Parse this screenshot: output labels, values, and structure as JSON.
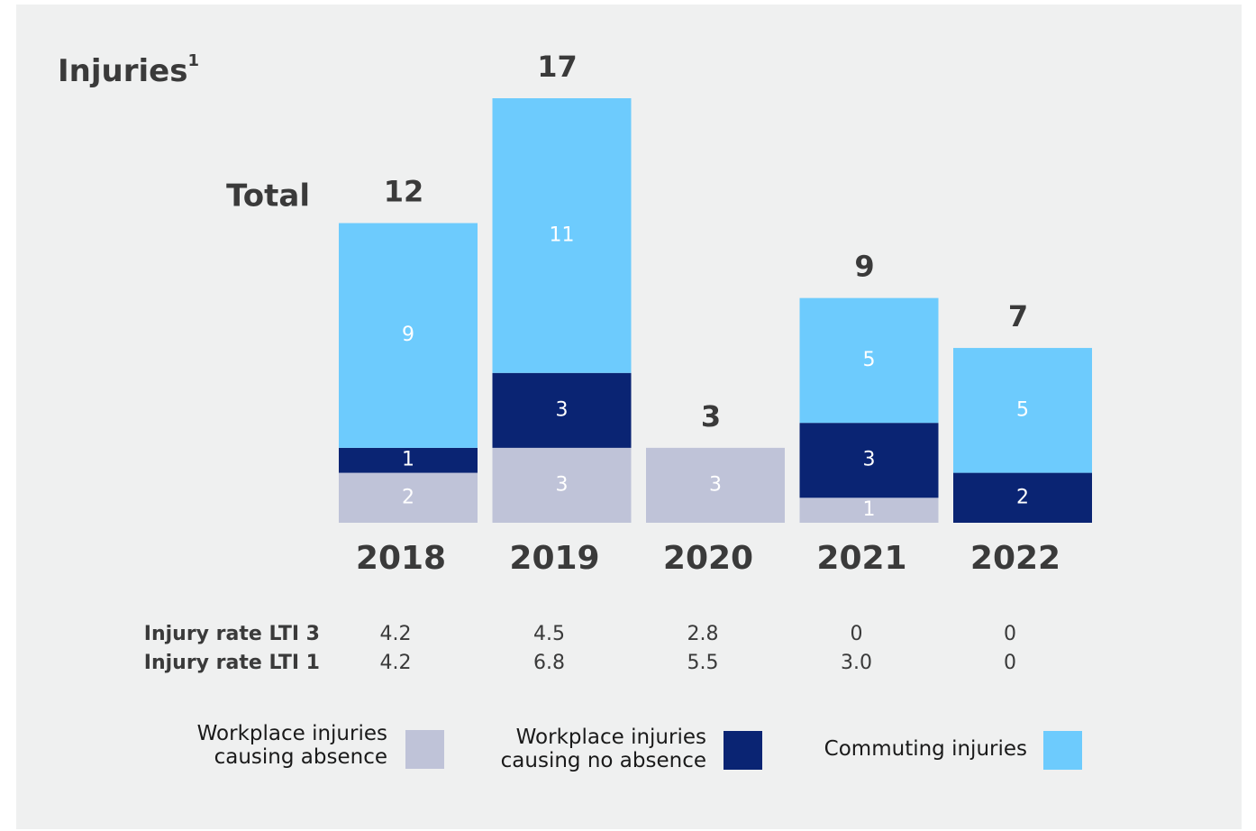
{
  "chart_data": {
    "type": "stacked_bar",
    "title": "Injuries",
    "title_note": "1",
    "total_label": "Total",
    "categories": [
      "2018",
      "2019",
      "2020",
      "2021",
      "2022"
    ],
    "series": [
      {
        "name": "Workplace injuries causing absence",
        "color": "#bfc3d8",
        "values": [
          2,
          3,
          3,
          1,
          0
        ]
      },
      {
        "name": "Workplace injuries causing no absence",
        "color": "#0a2473",
        "values": [
          1,
          3,
          0,
          3,
          2
        ]
      },
      {
        "name": "Commuting injuries",
        "color": "#6dcbfd",
        "values": [
          9,
          11,
          0,
          5,
          5
        ]
      }
    ],
    "totals": [
      12,
      17,
      3,
      9,
      7
    ],
    "ylim": [
      0,
      17
    ],
    "rates": [
      {
        "name": "Injury rate LTI 3",
        "values": [
          4.2,
          4.5,
          2.8,
          0,
          0
        ]
      },
      {
        "name": "Injury rate LTI 1",
        "values": [
          4.2,
          6.8,
          5.5,
          3.0,
          0
        ],
        "value_labels": [
          "4.2",
          "6.8",
          "5.5",
          "3.0",
          "0"
        ]
      }
    ]
  }
}
